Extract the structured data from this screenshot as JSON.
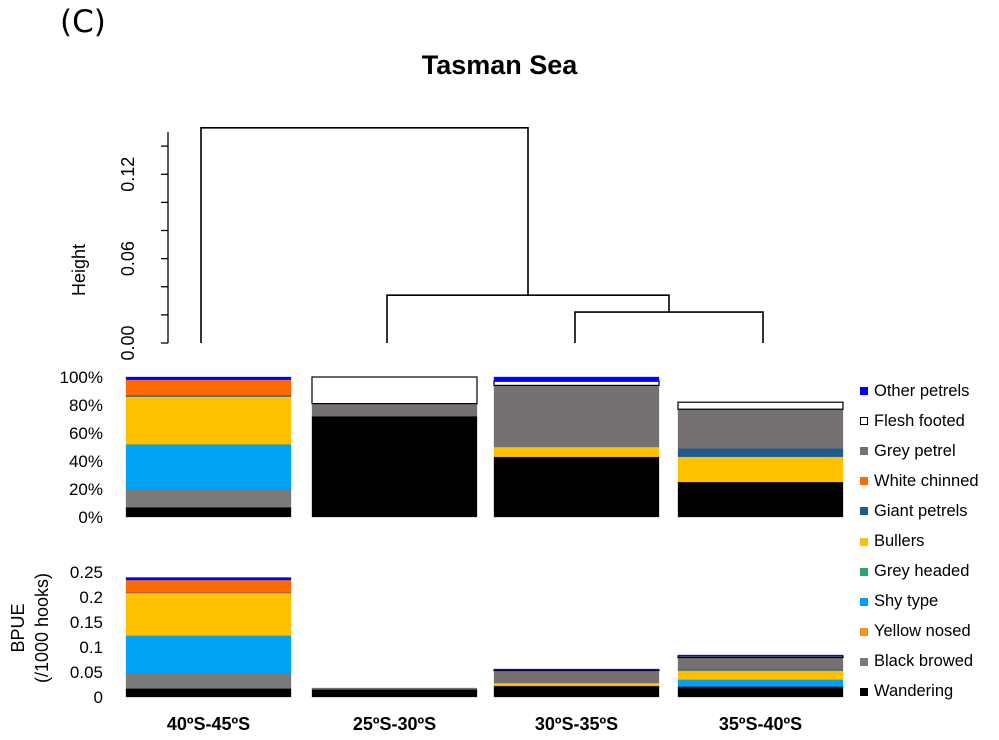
{
  "panel_label": "(C)",
  "title": "Tasman Sea",
  "chart_data": [
    {
      "type": "dendrogram",
      "title": "Tasman Sea",
      "ylabel": "Height",
      "yticks": [
        "0.00",
        "0.06",
        "0.12"
      ],
      "ylim": [
        0,
        0.16
      ],
      "leaves": [
        "40ºS-45ºS",
        "25ºS-30ºS",
        "30ºS-35ºS",
        "35ºS-40ºS"
      ],
      "merges": [
        {
          "left": "30ºS-35ºS",
          "right": "35ºS-40ºS",
          "height": 0.022
        },
        {
          "left": "25ºS-30ºS",
          "right": "(30ºS-35ºS, 35ºS-40ºS)",
          "height": 0.034
        },
        {
          "left": "40ºS-45ºS",
          "right": "(25ºS-30ºS, 30ºS-35ºS, 35ºS-40ºS)",
          "height": 0.153
        }
      ]
    },
    {
      "type": "bar",
      "stacked": true,
      "percent": true,
      "categories": [
        "40ºS-45ºS",
        "25ºS-30ºS",
        "30ºS-35ºS",
        "35ºS-40ºS"
      ],
      "yticks": [
        "0%",
        "20%",
        "40%",
        "60%",
        "80%",
        "100%"
      ],
      "ylim": [
        0,
        100
      ],
      "series": [
        {
          "name": "Wandering",
          "values": [
            7,
            72,
            43,
            25
          ]
        },
        {
          "name": "Black browed",
          "values": [
            13,
            0,
            0,
            0
          ]
        },
        {
          "name": "Yellow nosed",
          "values": [
            0,
            0,
            0,
            0
          ]
        },
        {
          "name": "Shy type",
          "values": [
            32,
            0,
            0,
            0
          ]
        },
        {
          "name": "Grey headed",
          "values": [
            0,
            0,
            0,
            0
          ]
        },
        {
          "name": "Bullers",
          "values": [
            34,
            0,
            7,
            18
          ]
        },
        {
          "name": "Giant petrels",
          "values": [
            1,
            0,
            0,
            6
          ]
        },
        {
          "name": "White chinned",
          "values": [
            11,
            0,
            0,
            0
          ]
        },
        {
          "name": "Grey petrel",
          "values": [
            0,
            9,
            44,
            28
          ]
        },
        {
          "name": "Flesh footed",
          "values": [
            0,
            19,
            3,
            5
          ]
        },
        {
          "name": "Other petrels",
          "values": [
            2,
            0,
            3,
            0
          ]
        }
      ]
    },
    {
      "type": "bar",
      "stacked": true,
      "categories": [
        "40ºS-45ºS",
        "25ºS-30ºS",
        "30ºS-35ºS",
        "35ºS-40ºS"
      ],
      "ylabel": "BPUE",
      "ylabel2": "(/1000 hooks)",
      "yticks": [
        "0",
        "0.05",
        "0.1",
        "0.15",
        "0.2",
        "0.25"
      ],
      "ylim": [
        0,
        0.25
      ],
      "series": [
        {
          "name": "Wandering",
          "values": [
            0.017,
            0.015,
            0.022,
            0.021
          ]
        },
        {
          "name": "Black browed",
          "values": [
            0.031,
            0,
            0,
            0
          ]
        },
        {
          "name": "Yellow nosed",
          "values": [
            0,
            0,
            0,
            0
          ]
        },
        {
          "name": "Shy type",
          "values": [
            0.075,
            0,
            0,
            0.014
          ]
        },
        {
          "name": "Grey headed",
          "values": [
            0,
            0,
            0,
            0
          ]
        },
        {
          "name": "Bullers",
          "values": [
            0.085,
            0,
            0.006,
            0.018
          ]
        },
        {
          "name": "Giant petrels",
          "values": [
            0.001,
            0,
            0,
            0.002
          ]
        },
        {
          "name": "White chinned",
          "values": [
            0.025,
            0,
            0,
            0
          ]
        },
        {
          "name": "Grey petrel",
          "values": [
            0,
            0.003,
            0.025,
            0.024
          ]
        },
        {
          "name": "Flesh footed",
          "values": [
            0,
            0,
            0.001,
            0.003
          ]
        },
        {
          "name": "Other petrels",
          "values": [
            0.005,
            0,
            0.002,
            0.002
          ]
        }
      ]
    }
  ],
  "colors": {
    "Wandering": "#000000",
    "Black browed": "#7a7a7a",
    "Yellow nosed": "#f7941d",
    "Shy type": "#00a2f2",
    "Grey headed": "#2ca36b",
    "Bullers": "#ffc000",
    "Giant petrels": "#1f5c8b",
    "White chinned": "#fd6a02",
    "Grey petrel": "#757171",
    "Flesh footed": "#ffffff",
    "Other petrels": "#0000ff"
  },
  "legend": [
    "Other petrels",
    "Flesh footed",
    "Grey petrel",
    "White chinned",
    "Giant petrels",
    "Bullers",
    "Grey headed",
    "Shy type",
    "Yellow nosed",
    "Black browed",
    "Wandering"
  ]
}
